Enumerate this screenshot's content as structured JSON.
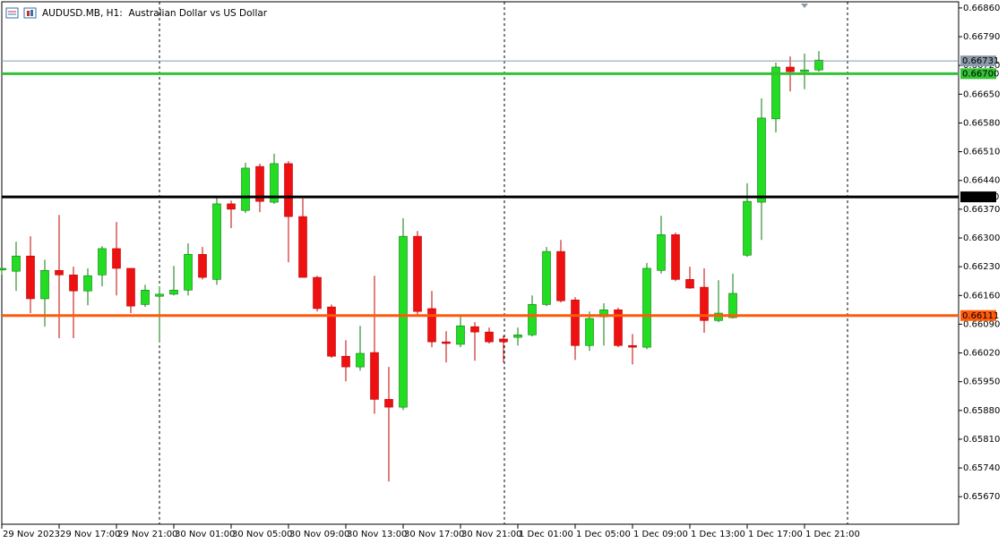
{
  "chart_data": {
    "type": "candlestick",
    "title": "AUDUSD.MB, H1:  Australian Dollar vs US Dollar",
    "categories": [
      "29 Nov 2023",
      null,
      null,
      null,
      "29 Nov 17:00",
      null,
      null,
      null,
      "29 Nov 21:00",
      null,
      null,
      null,
      "30 Nov 01:00",
      null,
      null,
      null,
      "30 Nov 05:00",
      null,
      null,
      null,
      "30 Nov 09:00",
      null,
      null,
      null,
      "30 Nov 13:00",
      null,
      null,
      null,
      "30 Nov 17:00",
      null,
      null,
      null,
      "30 Nov 21:00",
      null,
      null,
      null,
      "1 Dec 01:00",
      null,
      null,
      null,
      "1 Dec 05:00",
      null,
      null,
      null,
      "1 Dec 09:00",
      null,
      null,
      null,
      "1 Dec 13:00",
      null,
      null,
      null,
      "1 Dec 17:00",
      null,
      null,
      null,
      "1 Dec 21:00",
      null
    ],
    "series": [
      {
        "bull_color": "#22dd22",
        "bear_color": "#ee1111",
        "open": [
          0.66222,
          0.66219,
          0.66256,
          0.66152,
          0.66221,
          0.6621,
          0.66171,
          0.6621,
          0.66274,
          0.66226,
          0.66138,
          0.66158,
          0.66163,
          0.66173,
          0.6626,
          0.66199,
          0.66383,
          0.66367,
          0.66474,
          0.66387,
          0.66481,
          0.66352,
          0.66204,
          0.66132,
          0.66012,
          0.65986,
          0.66021,
          0.65907,
          0.65888,
          0.66304,
          0.66128,
          0.66047,
          0.66041,
          0.66084,
          0.66071,
          0.66054,
          0.66058,
          0.66064,
          0.66138,
          0.66267,
          0.66149,
          0.66038,
          0.66108,
          0.66125,
          0.66038,
          0.66034,
          0.66221,
          0.66308,
          0.66199,
          0.6618,
          0.66099,
          0.66106,
          0.66258,
          0.66387,
          0.6659,
          0.66716,
          0.66705,
          0.66709
        ],
        "high": [
          0.66228,
          0.66291,
          0.66304,
          0.66247,
          0.66356,
          0.6623,
          0.66226,
          0.6628,
          0.66339,
          0.66226,
          0.66186,
          0.66182,
          0.66232,
          0.66287,
          0.66278,
          0.664,
          0.66391,
          0.66483,
          0.66481,
          0.66505,
          0.66487,
          0.66396,
          0.66208,
          0.66138,
          0.66051,
          0.66086,
          0.66208,
          0.65986,
          0.66348,
          0.66317,
          0.66171,
          0.66073,
          0.66112,
          0.66095,
          0.66082,
          0.66062,
          0.66082,
          0.6616,
          0.66278,
          0.66295,
          0.66156,
          0.66121,
          0.66141,
          0.6613,
          0.66066,
          0.66239,
          0.66354,
          0.66313,
          0.6623,
          0.66226,
          0.66197,
          0.66213,
          0.66433,
          0.6664,
          0.66727,
          0.66742,
          0.66749,
          0.66755
        ],
        "low": [
          0.6621,
          0.66171,
          0.66117,
          0.66084,
          0.66056,
          0.66056,
          0.66136,
          0.66182,
          0.6616,
          0.66117,
          0.66132,
          0.66045,
          0.6616,
          0.6616,
          0.66199,
          0.66186,
          0.66324,
          0.66361,
          0.66363,
          0.66383,
          0.66241,
          0.66204,
          0.66121,
          0.66008,
          0.65951,
          0.65977,
          0.65872,
          0.65707,
          0.65881,
          0.66112,
          0.66034,
          0.65997,
          0.66034,
          0.66001,
          0.66043,
          0.65997,
          0.66038,
          0.6606,
          0.66134,
          0.66143,
          0.66003,
          0.66025,
          0.66038,
          0.66034,
          0.65992,
          0.66029,
          0.66213,
          0.66195,
          0.66176,
          0.66069,
          0.66095,
          0.66104,
          0.66254,
          0.66295,
          0.66557,
          0.66657,
          0.66662,
          0.66705
        ],
        "close": [
          0.66226,
          0.66256,
          0.66152,
          0.66221,
          0.6621,
          0.66171,
          0.66208,
          0.66274,
          0.66226,
          0.66134,
          0.66173,
          0.66163,
          0.66173,
          0.6626,
          0.66204,
          0.66383,
          0.6637,
          0.6647,
          0.66389,
          0.66481,
          0.66352,
          0.66204,
          0.66128,
          0.66012,
          0.65986,
          0.66019,
          0.65907,
          0.65888,
          0.66304,
          0.66121,
          0.66047,
          0.66043,
          0.66086,
          0.66071,
          0.66047,
          0.66047,
          0.66064,
          0.66138,
          0.66267,
          0.66147,
          0.66038,
          0.66104,
          0.66125,
          0.66038,
          0.66034,
          0.66226,
          0.66308,
          0.66199,
          0.66178,
          0.66099,
          0.66117,
          0.66165,
          0.66389,
          0.66592,
          0.66716,
          0.66705,
          0.66709,
          0.66733
        ]
      }
    ],
    "levels": [
      {
        "value": 0.66731,
        "label": "0.66731",
        "color": "#8a9aa8",
        "width": 1
      },
      {
        "value": 0.667,
        "label": "0.66700",
        "color": "#33c233",
        "width": 3
      },
      {
        "value": 0.664,
        "label": "0.66400",
        "color": "#000000",
        "width": 3
      },
      {
        "value": 0.66111,
        "label": "0.66111",
        "color": "#ff5a0a",
        "width": 3
      }
    ],
    "ylim": [
      0.65603,
      0.66875
    ],
    "yticks": [
      {
        "value": 0.6686,
        "label": "0.66860"
      },
      {
        "value": 0.6679,
        "label": "0.66790"
      },
      {
        "value": 0.6672,
        "label": "0.66720"
      },
      {
        "value": 0.6665,
        "label": "0.66650"
      },
      {
        "value": 0.6658,
        "label": "0.66580"
      },
      {
        "value": 0.6651,
        "label": "0.66510"
      },
      {
        "value": 0.6644,
        "label": "0.66440"
      },
      {
        "value": 0.6637,
        "label": "0.66370"
      },
      {
        "value": 0.663,
        "label": "0.66300"
      },
      {
        "value": 0.6623,
        "label": "0.66230"
      },
      {
        "value": 0.6616,
        "label": "0.66160"
      },
      {
        "value": 0.6609,
        "label": "0.66090"
      },
      {
        "value": 0.6602,
        "label": "0.66020"
      },
      {
        "value": 0.6595,
        "label": "0.65950"
      },
      {
        "value": 0.6588,
        "label": "0.65880"
      },
      {
        "value": 0.6581,
        "label": "0.65810"
      },
      {
        "value": 0.6574,
        "label": "0.65740"
      },
      {
        "value": 0.6567,
        "label": "0.65670"
      }
    ]
  }
}
